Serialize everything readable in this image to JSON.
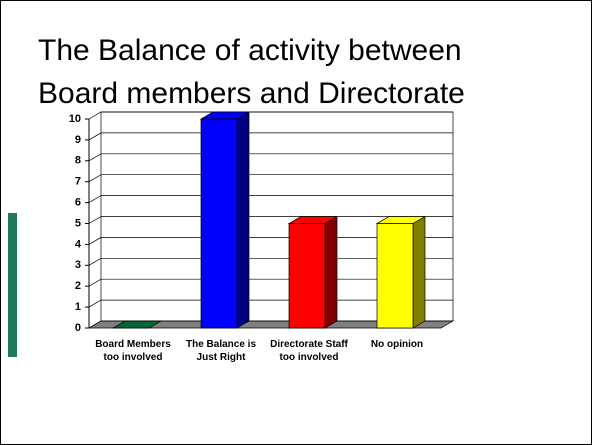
{
  "chart_data": {
    "type": "bar3d",
    "title": "The Balance of activity between Board members and Directorate",
    "categories": [
      "Board Members too involved",
      "The Balance is Just Right",
      "Directorate Staff too involved",
      "No opinion"
    ],
    "values": [
      0,
      10,
      5,
      5
    ],
    "colors": [
      "#006633",
      "#0000ff",
      "#ff0000",
      "#ffff00"
    ],
    "ylim": [
      0,
      10
    ],
    "yticks": [
      0,
      1,
      2,
      3,
      4,
      5,
      6,
      7,
      8,
      9,
      10
    ],
    "grid": true
  }
}
